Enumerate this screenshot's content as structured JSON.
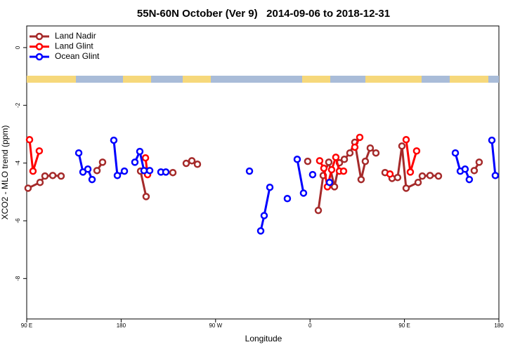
{
  "chart_data": {
    "type": "line",
    "title": "55N-60N October (Ver 9)   2014-09-06 to 2018-12-31",
    "x_label": "Longitude",
    "y_label": "XCO2 - MLO trend (ppm)",
    "xlim": [
      90,
      540
    ],
    "ylim": [
      -9.4,
      0.75
    ],
    "xticks": [
      {
        "value": 90,
        "label": "90 E"
      },
      {
        "value": 180,
        "label": "180"
      },
      {
        "value": 270,
        "label": "90 W"
      },
      {
        "value": 360,
        "label": "0"
      },
      {
        "value": 450,
        "label": "90 E"
      },
      {
        "value": 540,
        "label": "180"
      }
    ],
    "yticks": [
      0,
      -2,
      -4,
      -6,
      -8
    ],
    "legend": "top-left",
    "series": [
      {
        "name": "Land Nadir",
        "color": "#a52a2a",
        "x": [
          91.3,
          102.7,
          107.4,
          114.8,
          122.8,
          null,
          157.0,
          162.3,
          null,
          198.5,
          203.8,
          null,
          229.3,
          null,
          242.0,
          247.4,
          252.7,
          null,
          357.8,
          null,
          367.9,
          372.6,
          377.9,
          383.3,
          388.0,
          392.7,
          398.0,
          402.7,
          408.7,
          412.7,
          417.4,
          422.8,
          null,
          431.5,
          438.2,
          443.5,
          447.6,
          451.6,
          463.0,
          467.0,
          474.4,
          482.4,
          null,
          516.5,
          521.2
        ],
        "values": [
          -4.87,
          -4.67,
          -4.45,
          -4.43,
          -4.45,
          null,
          -4.26,
          -3.97,
          null,
          -4.28,
          -5.16,
          null,
          -4.33,
          null,
          -4.01,
          -3.92,
          -4.04,
          null,
          -3.94,
          null,
          -5.64,
          -4.43,
          -3.97,
          -4.82,
          -3.99,
          -3.87,
          -3.65,
          -3.28,
          -4.57,
          -3.94,
          -3.48,
          -3.65,
          null,
          -4.33,
          -4.53,
          -4.5,
          -3.41,
          -4.87,
          -4.67,
          -4.45,
          -4.43,
          -4.45,
          null,
          -4.26,
          -3.97
        ]
      },
      {
        "name": "Land Glint",
        "color": "#ff0000",
        "x": [
          92.7,
          96.0,
          102.0,
          null,
          203.2,
          205.2,
          null,
          369.2,
          373.2,
          376.6,
          380.6,
          384.6,
          388.0,
          392.0,
          null,
          402.7,
          407.4,
          null,
          436.2,
          null,
          451.6,
          455.6,
          461.6
        ],
        "values": [
          -3.19,
          -4.28,
          -3.58,
          null,
          -3.82,
          -4.4,
          null,
          -3.92,
          -4.18,
          -4.82,
          -4.23,
          -3.8,
          -4.28,
          -4.28,
          null,
          -3.45,
          -3.11,
          null,
          -4.38,
          null,
          -3.19,
          -4.31,
          -3.58
        ]
      },
      {
        "name": "Ocean Glint",
        "color": "#0000ff",
        "x": [
          139.6,
          143.6,
          148.3,
          152.3,
          null,
          173.0,
          176.4,
          183.1,
          null,
          193.1,
          197.8,
          201.8,
          207.2,
          null,
          217.9,
          222.6,
          null,
          302.3,
          null,
          313.0,
          316.3,
          321.7,
          null,
          338.4,
          null,
          347.8,
          353.8,
          null,
          362.5,
          null,
          378.6,
          null,
          498.5,
          503.2,
          507.8,
          511.8,
          null,
          533.3,
          536.6
        ],
        "values": [
          -3.65,
          -4.31,
          -4.21,
          -4.57,
          null,
          -3.21,
          -4.43,
          -4.28,
          null,
          -3.97,
          -3.6,
          -4.26,
          -4.26,
          null,
          -4.31,
          -4.31,
          null,
          -4.28,
          null,
          -6.35,
          -5.82,
          -4.84,
          null,
          -5.23,
          null,
          -3.87,
          -5.04,
          null,
          -4.4,
          null,
          -4.67,
          null,
          -3.65,
          -4.28,
          -4.21,
          -4.57,
          null,
          -3.21,
          -4.43
        ]
      }
    ]
  }
}
